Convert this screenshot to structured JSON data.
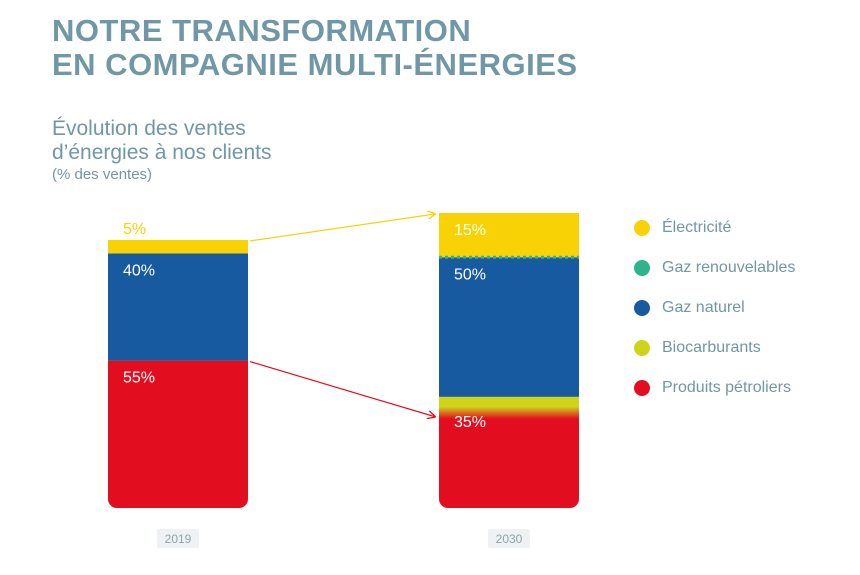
{
  "header": {
    "title_line1": "NOTRE TRANSFORMATION",
    "title_line2": "EN COMPAGNIE MULTI-ÉNERGIES",
    "subtitle_line1": "Évolution des ventes",
    "subtitle_line2": "d’énergies à nos clients",
    "unit": "(% des ventes)"
  },
  "colors": {
    "electricite": "#f9d205",
    "gaz_renouvelables": "#2fb38a",
    "gaz_naturel": "#175aa0",
    "biocarburants": "#cfd31a",
    "produits_petroliers": "#e20e20",
    "title": "#6f97a6"
  },
  "chart_data": {
    "type": "bar",
    "stacked": true,
    "categories": [
      "2019",
      "2030"
    ],
    "series": [
      {
        "name": "Produits pétroliers",
        "color": "#e20e20",
        "values": [
          55,
          35
        ]
      },
      {
        "name": "Biocarburants",
        "color": "#cfd31a",
        "values": [
          null,
          null
        ]
      },
      {
        "name": "Gaz naturel",
        "color": "#175aa0",
        "values": [
          40,
          50
        ]
      },
      {
        "name": "Gaz renouvelables",
        "color": "#2fb38a",
        "values": [
          null,
          null
        ]
      },
      {
        "name": "Électricité",
        "color": "#f9d205",
        "values": [
          5,
          15
        ]
      }
    ],
    "data_labels": [
      [
        "55%",
        "40%",
        "5%"
      ],
      [
        "35%",
        "50%",
        "15%"
      ]
    ],
    "legend_position": "right",
    "ylim": [
      0,
      100
    ]
  },
  "legend": [
    {
      "label": "Électricité",
      "color": "#f9d205"
    },
    {
      "label": "Gaz renouvelables",
      "color": "#2fb38a"
    },
    {
      "label": "Gaz naturel",
      "color": "#175aa0"
    },
    {
      "label": "Biocarburants",
      "color": "#cfd31a"
    },
    {
      "label": "Produits pétroliers",
      "color": "#e20e20"
    }
  ]
}
